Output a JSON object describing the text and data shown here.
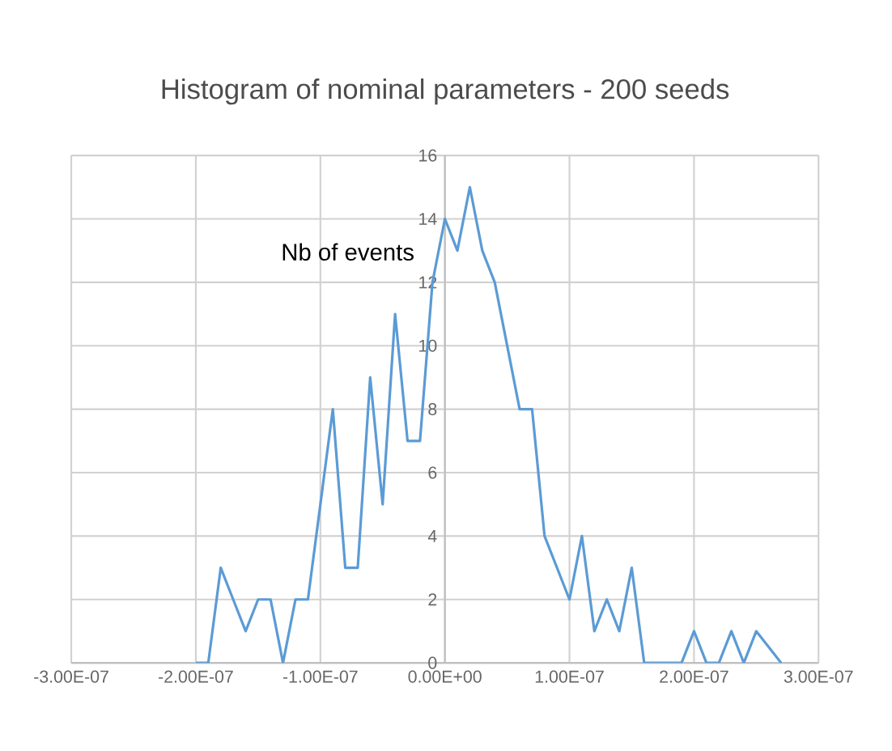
{
  "chart_data": {
    "type": "line",
    "title": "Histogram of nominal parameters - 200 seeds",
    "ylabel": "Nb of events",
    "x": [
      2.7e-07,
      2.5e-07,
      2.4e-07,
      2.3e-07,
      2.2e-07,
      2.1e-07,
      2e-07,
      1.9e-07,
      1.8e-07,
      1.7e-07,
      1.6e-07,
      1.5e-07,
      1.4e-07,
      1.3e-07,
      1.2e-07,
      1.1e-07,
      1e-07,
      9e-08,
      8e-08,
      7e-08,
      6e-08,
      5e-08,
      4e-08,
      3e-08,
      2e-08,
      1e-08,
      0,
      -1e-08,
      -2e-08,
      -3e-08,
      -4e-08,
      -5e-08,
      -6e-08,
      -7e-08,
      -8e-08,
      -9e-08,
      -1e-07,
      -1.1e-07,
      -1.2e-07,
      -1.3e-07,
      -1.4e-07,
      -1.5e-07,
      -1.6e-07,
      -1.7e-07,
      -1.8e-07,
      -1.9e-07,
      -2e-07
    ],
    "values": [
      0,
      1,
      0,
      1,
      0,
      0,
      1,
      0,
      0,
      0,
      0,
      3,
      1,
      2,
      1,
      4,
      2,
      3,
      4,
      8,
      8,
      10,
      12,
      13,
      15,
      13,
      14,
      12,
      7,
      7,
      11,
      5,
      9,
      3,
      3,
      8,
      5,
      2,
      2,
      0,
      2,
      2,
      1,
      2,
      3,
      0,
      0
    ],
    "color": "#5b9bd5",
    "marker": "none",
    "line_style": "solid",
    "grid": true,
    "xlim": [
      -3e-07,
      3e-07
    ],
    "xticks": [
      {
        "value": -3e-07,
        "label": "-3.00E-07"
      },
      {
        "value": -2e-07,
        "label": "-2.00E-07"
      },
      {
        "value": -1e-07,
        "label": "-1.00E-07"
      },
      {
        "value": 0,
        "label": "0.00E+00"
      },
      {
        "value": 1e-07,
        "label": "1.00E-07"
      },
      {
        "value": 2e-07,
        "label": "2.00E-07"
      },
      {
        "value": 3e-07,
        "label": "3.00E-07"
      }
    ],
    "ylim": [
      0,
      16
    ],
    "yticks": [
      0,
      2,
      4,
      6,
      8,
      10,
      12,
      14,
      16
    ]
  }
}
